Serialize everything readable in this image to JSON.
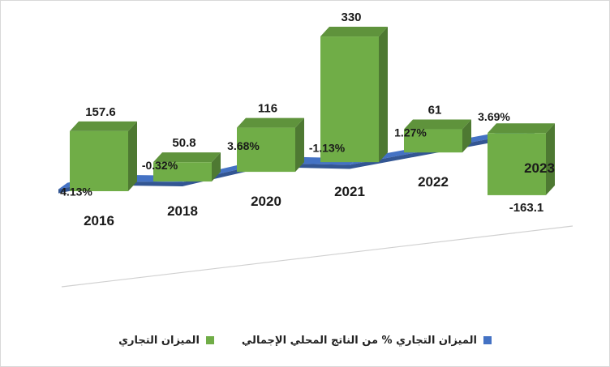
{
  "chart_data": {
    "type": "bar",
    "categories": [
      "2016",
      "2018",
      "2020",
      "2021",
      "2022",
      "2023"
    ],
    "series": [
      {
        "name": "الميزان التجاري",
        "type": "bar",
        "values": [
          157.6,
          50.8,
          116,
          330,
          61,
          -163.1
        ],
        "labels": [
          "157.6",
          "50.8",
          "116",
          "330",
          "61",
          "-163.1"
        ],
        "color": "#70ad47"
      },
      {
        "name": "الميزان التجاري % من الناتج المحلي الإجمالي",
        "type": "ribbon",
        "values": [
          4.13,
          -0.32,
          3.68,
          -1.13,
          1.27,
          3.69
        ],
        "labels": [
          "4.13%",
          "-0.32%",
          "3.68%",
          "-1.13%",
          "1.27%",
          "3.69%"
        ],
        "color": "#4472c4"
      }
    ],
    "title": "",
    "xlabel": "",
    "ylabel": "",
    "grid": false,
    "legend": "bottom"
  }
}
